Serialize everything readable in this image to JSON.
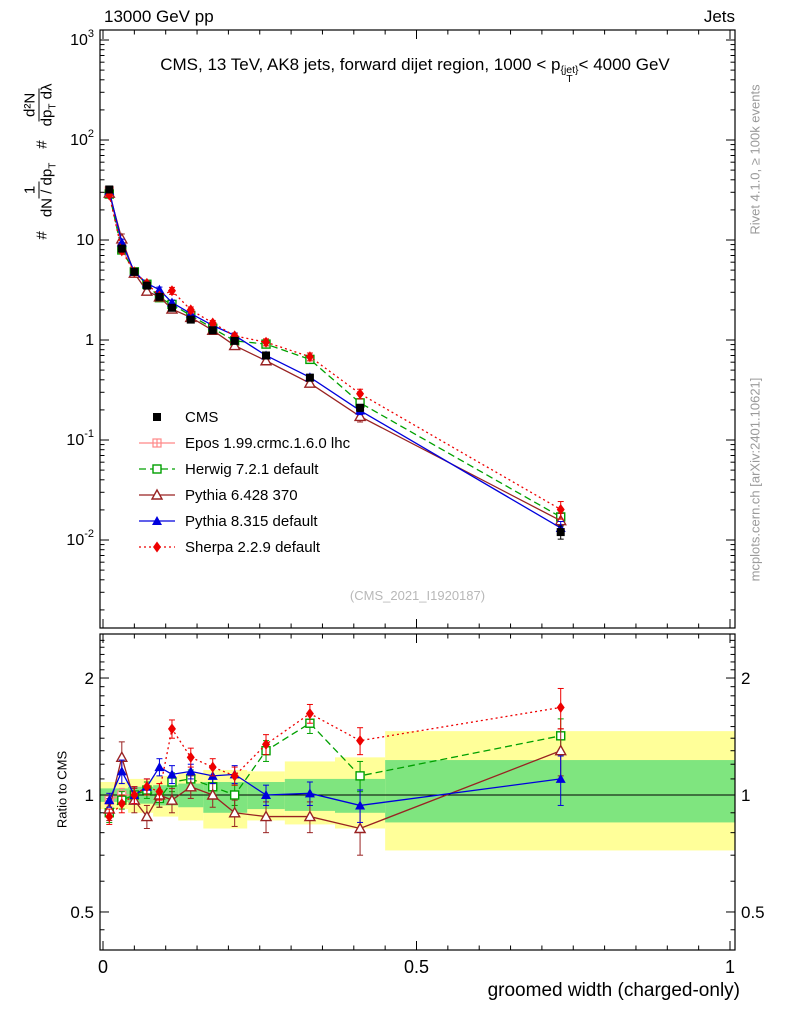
{
  "page": {
    "beam_label": "13000 GeV pp",
    "process_label": "Jets",
    "rivet_label": "Rivet 4.1.0, ≥ 100k events",
    "arxiv_label": "mcplots.cern.ch [arXiv:2401.10621]",
    "watermark": "(CMS_2021_I1920187)"
  },
  "title": {
    "pre": "CMS, 13 TeV, AK8 jets, forward dijet region, 1000 < p",
    "sup": "{jet}",
    "sub": "T",
    "post": "< 4000 GeV"
  },
  "ylabel_main": {
    "hash1": "#",
    "frac1_num": "1",
    "frac1_den_a": "dN / dp",
    "frac1_den_sub": "T",
    "hash2": "#",
    "frac2_num": "d²N",
    "frac2_den_a": "dp",
    "frac2_den_sub": "T",
    "frac2_den_b": " dλ"
  },
  "ratio_ylabel": "Ratio to CMS",
  "xlabel": "groomed width (charged-only)",
  "chart_data": {
    "type": "line",
    "title": "CMS, 13 TeV, AK8 jets, forward dijet region, 1000 < pT^{jet} < 4000 GeV",
    "xlabel": "groomed width (charged-only)",
    "ylabel_top": "1/(dN/dpT) d2N/(dpT dlambda)",
    "ylabel_ratio": "Ratio to CMS",
    "legend_position": "left-middle",
    "grid": false,
    "colors": {
      "band_yellow": "#ffff99",
      "band_green": "#7fe57f",
      "frame": "#000000",
      "watermark": "#b8b8b8",
      "side_text": "#9a9a9a"
    },
    "axes": {
      "x": {
        "min": 0,
        "max": 1,
        "majors": [
          0,
          0.5,
          1
        ],
        "labels": [
          "0",
          "0.5",
          "1"
        ],
        "minor_step": 0.05
      },
      "y_main": {
        "scale": "log",
        "min": 0.00126,
        "max": 1259,
        "majors": [
          1000,
          100,
          10,
          1,
          0.1,
          0.01
        ],
        "labels": [
          [
            "10",
            "3"
          ],
          [
            "10",
            "2"
          ],
          [
            "10",
            ""
          ],
          [
            "1",
            ""
          ],
          [
            "10",
            "-1"
          ],
          [
            "10",
            "-2"
          ]
        ]
      },
      "y_ratio": {
        "scale": "log",
        "min": 0.4,
        "max": 2.6,
        "majors": [
          0.5,
          1,
          2
        ],
        "labels": [
          "0.5",
          "1",
          "2"
        ]
      }
    },
    "x": [
      0.01,
      0.03,
      0.05,
      0.07,
      0.09,
      0.11,
      0.14,
      0.175,
      0.21,
      0.26,
      0.33,
      0.41,
      0.73
    ],
    "series": [
      {
        "key": "cms",
        "name": "CMS",
        "color": "#000000",
        "marker": "square-filled",
        "line": "none",
        "values": [
          32,
          8.2,
          4.8,
          3.5,
          2.7,
          2.1,
          1.6,
          1.25,
          0.98,
          0.7,
          0.42,
          0.21,
          0.012
        ],
        "rel_err": [
          0.03,
          0.03,
          0.03,
          0.03,
          0.03,
          0.03,
          0.04,
          0.04,
          0.04,
          0.05,
          0.06,
          0.08,
          0.15
        ],
        "ratio": [
          1,
          1,
          1,
          1,
          1,
          1,
          1,
          1,
          1,
          1,
          1,
          1,
          1
        ]
      },
      {
        "key": "epos",
        "name": "Epos 1.99.crmc.1.6.0 lhc",
        "color": "#ff8888",
        "marker": "square-plus-open",
        "line": "solid",
        "values": [
          31.0,
          8.2,
          4.8,
          null,
          null,
          null,
          null,
          null,
          null,
          null,
          null,
          null,
          null
        ],
        "rel_err": [
          0.04,
          0.04,
          0.05,
          null,
          null,
          null,
          null,
          null,
          null,
          null,
          null,
          null,
          null
        ],
        "ratio": [
          0.97,
          1.0,
          1.0,
          null,
          null,
          null,
          null,
          null,
          null,
          null,
          null,
          null,
          null
        ],
        "ratio_err": [
          0.04,
          0.04,
          0.05,
          null,
          null,
          null,
          null,
          null,
          null,
          null,
          null,
          null,
          null
        ]
      },
      {
        "key": "herwig",
        "name": "Herwig 7.2.1 default",
        "color": "#00a000",
        "marker": "square-open",
        "line": "dashed",
        "values": [
          28.8,
          7.95,
          4.8,
          3.61,
          2.65,
          2.27,
          1.76,
          1.31,
          0.98,
          0.91,
          0.64,
          0.235,
          0.017
        ],
        "rel_err": [
          0.05,
          0.05,
          0.05,
          0.05,
          0.05,
          0.06,
          0.06,
          0.06,
          0.06,
          0.08,
          0.09,
          0.1,
          0.15
        ],
        "ratio": [
          0.9,
          0.97,
          1.0,
          1.03,
          0.98,
          1.08,
          1.1,
          1.05,
          1.0,
          1.3,
          1.53,
          1.12,
          1.42
        ],
        "ratio_err": [
          0.05,
          0.05,
          0.05,
          0.05,
          0.05,
          0.06,
          0.06,
          0.06,
          0.06,
          0.08,
          0.09,
          0.1,
          0.15
        ]
      },
      {
        "key": "pythia6",
        "name": "Pythia 6.428 370",
        "color": "#992222",
        "marker": "triangle-open",
        "line": "solid",
        "values": [
          29.4,
          10.25,
          4.66,
          3.08,
          2.7,
          2.04,
          1.68,
          1.25,
          0.88,
          0.62,
          0.37,
          0.172,
          0.0156
        ],
        "rel_err": [
          0.06,
          0.12,
          0.07,
          0.06,
          0.07,
          0.07,
          0.07,
          0.07,
          0.07,
          0.08,
          0.08,
          0.12,
          0.18
        ],
        "ratio": [
          0.92,
          1.25,
          0.97,
          0.88,
          1.0,
          0.97,
          1.05,
          1.0,
          0.9,
          0.88,
          0.88,
          0.82,
          1.3
        ],
        "ratio_err": [
          0.06,
          0.12,
          0.07,
          0.06,
          0.07,
          0.07,
          0.07,
          0.07,
          0.07,
          0.08,
          0.08,
          0.12,
          0.18
        ]
      },
      {
        "key": "pythia8",
        "name": "Pythia 8.315 default",
        "color": "#0000dd",
        "marker": "triangle-filled",
        "line": "solid",
        "values": [
          31.0,
          9.43,
          4.8,
          3.68,
          3.19,
          2.37,
          1.84,
          1.4,
          1.11,
          0.7,
          0.424,
          0.197,
          0.0132
        ],
        "rel_err": [
          0.04,
          0.08,
          0.05,
          0.05,
          0.06,
          0.06,
          0.05,
          0.05,
          0.06,
          0.06,
          0.07,
          0.09,
          0.16
        ],
        "ratio": [
          0.97,
          1.15,
          1.0,
          1.05,
          1.18,
          1.13,
          1.15,
          1.12,
          1.13,
          1.0,
          1.01,
          0.94,
          1.1
        ],
        "ratio_err": [
          0.04,
          0.08,
          0.05,
          0.05,
          0.06,
          0.06,
          0.05,
          0.05,
          0.06,
          0.06,
          0.07,
          0.09,
          0.16
        ]
      },
      {
        "key": "sherpa",
        "name": "Sherpa 2.2.9 default",
        "color": "#ee0000",
        "marker": "diamond-filled",
        "line": "dotted",
        "values": [
          28.2,
          7.79,
          4.8,
          3.68,
          2.75,
          3.11,
          2.0,
          1.48,
          1.1,
          0.95,
          0.68,
          0.29,
          0.0202
        ],
        "rel_err": [
          0.04,
          0.05,
          0.05,
          0.05,
          0.05,
          0.08,
          0.07,
          0.06,
          0.06,
          0.08,
          0.09,
          0.11,
          0.2
        ],
        "ratio": [
          0.88,
          0.95,
          1.0,
          1.05,
          1.02,
          1.48,
          1.25,
          1.18,
          1.12,
          1.35,
          1.62,
          1.38,
          1.68
        ],
        "ratio_err": [
          0.04,
          0.05,
          0.05,
          0.05,
          0.05,
          0.08,
          0.07,
          0.06,
          0.06,
          0.08,
          0.09,
          0.11,
          0.2
        ]
      }
    ],
    "bands": [
      {
        "x0": 0.0,
        "x1": 0.04,
        "g_lo": 0.96,
        "g_hi": 1.04,
        "y_lo": 0.92,
        "y_hi": 1.08
      },
      {
        "x0": 0.04,
        "x1": 0.08,
        "g_lo": 0.95,
        "g_hi": 1.05,
        "y_lo": 0.9,
        "y_hi": 1.1
      },
      {
        "x0": 0.08,
        "x1": 0.12,
        "g_lo": 0.94,
        "g_hi": 1.06,
        "y_lo": 0.88,
        "y_hi": 1.12
      },
      {
        "x0": 0.12,
        "x1": 0.16,
        "g_lo": 0.93,
        "g_hi": 1.07,
        "y_lo": 0.86,
        "y_hi": 1.14
      },
      {
        "x0": 0.16,
        "x1": 0.23,
        "g_lo": 0.9,
        "g_hi": 1.08,
        "y_lo": 0.82,
        "y_hi": 1.16
      },
      {
        "x0": 0.23,
        "x1": 0.29,
        "g_lo": 0.92,
        "g_hi": 1.08,
        "y_lo": 0.86,
        "y_hi": 1.15
      },
      {
        "x0": 0.29,
        "x1": 0.37,
        "g_lo": 0.91,
        "g_hi": 1.1,
        "y_lo": 0.84,
        "y_hi": 1.22
      },
      {
        "x0": 0.37,
        "x1": 0.45,
        "g_lo": 0.9,
        "g_hi": 1.1,
        "y_lo": 0.82,
        "y_hi": 1.25
      },
      {
        "x0": 0.45,
        "x1": 1.0,
        "g_lo": 0.85,
        "g_hi": 1.23,
        "y_lo": 0.72,
        "y_hi": 1.46
      }
    ]
  }
}
